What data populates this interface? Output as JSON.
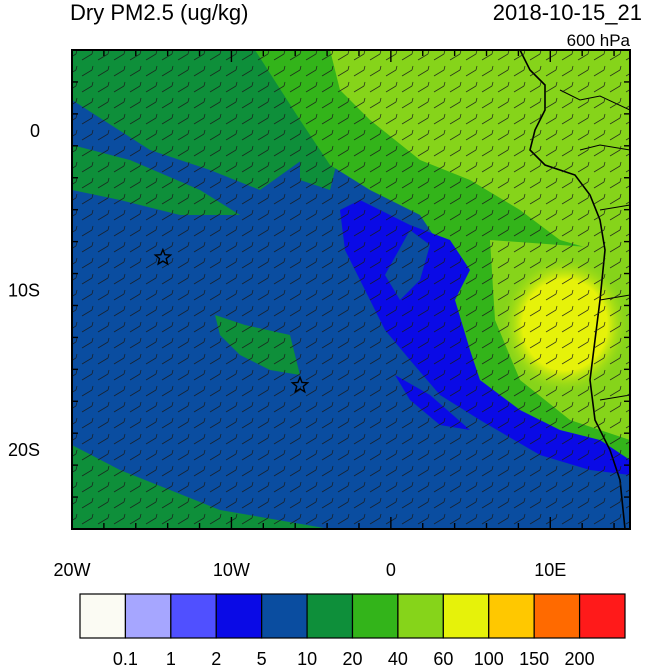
{
  "header": {
    "title": "Dry PM2.5 (ug/kg)",
    "datetime": "2018-10-15_21",
    "level": "600 hPa"
  },
  "map": {
    "lon_range": [
      -20,
      15
    ],
    "lat_range": [
      -25,
      5
    ],
    "lon_ticks": [
      {
        "value": -20,
        "label": "20W"
      },
      {
        "value": -10,
        "label": "10W"
      },
      {
        "value": 0,
        "label": "0"
      },
      {
        "value": 10,
        "label": "10E"
      }
    ],
    "lat_ticks": [
      {
        "value": 0,
        "label": "0"
      },
      {
        "value": -10,
        "label": "10S"
      },
      {
        "value": -20,
        "label": "20S"
      }
    ],
    "markers": [
      {
        "name": "star-marker-1",
        "lon": -14.3,
        "lat": -8.0
      },
      {
        "name": "star-marker-2",
        "lon": -5.7,
        "lat": -16.0
      }
    ]
  },
  "colorbar": {
    "colors": [
      "#fbfbf3",
      "#a6a6ff",
      "#5050ff",
      "#0a0ae6",
      "#0a4da0",
      "#0e8f3a",
      "#33b41a",
      "#86d41a",
      "#e6f20a",
      "#ffc800",
      "#ff6a00",
      "#ff1a1a"
    ],
    "labels": [
      "0.1",
      "1",
      "2",
      "5",
      "10",
      "20",
      "40",
      "60",
      "100",
      "150",
      "200"
    ]
  }
}
